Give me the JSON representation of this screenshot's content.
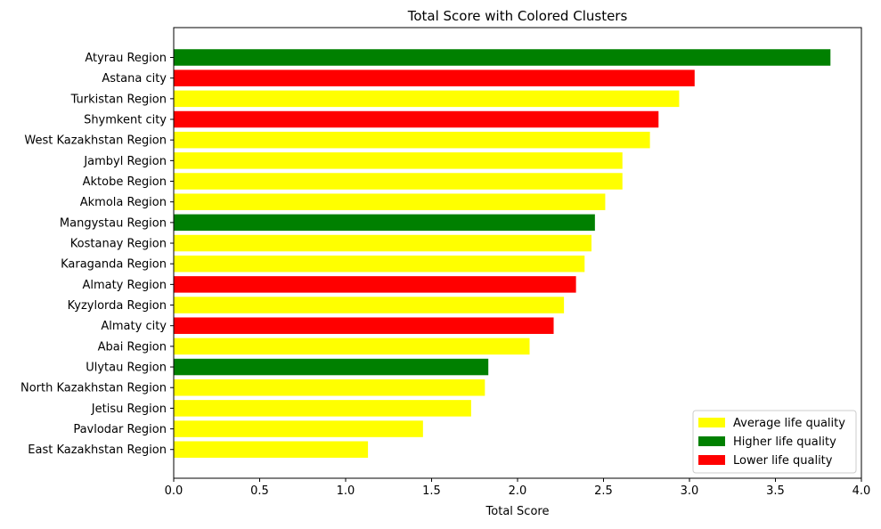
{
  "chart_data": {
    "type": "bar",
    "orientation": "horizontal",
    "title": "Total Score with Colored Clusters",
    "xlabel": "Total Score",
    "ylabel": "",
    "xlim": [
      0,
      4.0
    ],
    "xticks": [
      "0.0",
      "0.5",
      "1.0",
      "1.5",
      "2.0",
      "2.5",
      "3.0",
      "3.5",
      "4.0"
    ],
    "grid": false,
    "legend_position": "lower-right",
    "categories": [
      "Atyrau Region",
      "Astana city",
      "Turkistan Region",
      "Shymkent city",
      "West Kazakhstan Region",
      "Jambyl Region",
      "Aktobe Region",
      "Akmola Region",
      "Mangystau Region",
      "Kostanay Region",
      "Karaganda Region",
      "Almaty Region",
      "Kyzylorda Region",
      "Almaty city",
      "Abai Region",
      "Ulytau Region",
      "North Kazakhstan Region",
      "Jetisu Region",
      "Pavlodar Region",
      "East Kazakhstan Region"
    ],
    "values": [
      3.82,
      3.03,
      2.94,
      2.82,
      2.77,
      2.61,
      2.61,
      2.51,
      2.45,
      2.43,
      2.39,
      2.34,
      2.27,
      2.21,
      2.07,
      1.83,
      1.81,
      1.73,
      1.45,
      1.13
    ],
    "clusters": [
      "Higher life quality",
      "Lower life quality",
      "Average life quality",
      "Lower life quality",
      "Average life quality",
      "Average life quality",
      "Average life quality",
      "Average life quality",
      "Higher life quality",
      "Average life quality",
      "Average life quality",
      "Lower life quality",
      "Average life quality",
      "Lower life quality",
      "Average life quality",
      "Higher life quality",
      "Average life quality",
      "Average life quality",
      "Average life quality",
      "Average life quality"
    ],
    "legend": [
      {
        "label": "Average life quality",
        "color": "#ffff00"
      },
      {
        "label": "Higher life quality",
        "color": "#008000"
      },
      {
        "label": "Lower life quality",
        "color": "#ff0000"
      }
    ]
  }
}
